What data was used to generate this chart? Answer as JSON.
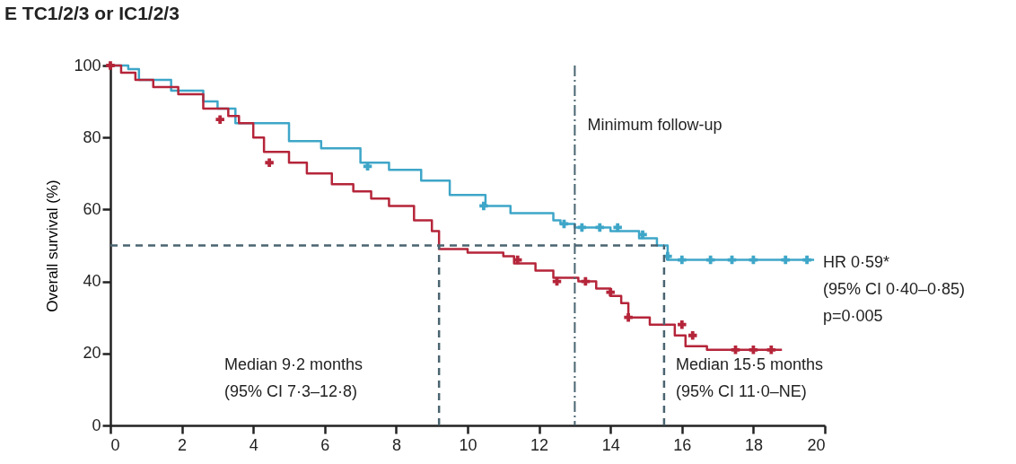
{
  "chart_data": {
    "type": "step",
    "title": "E  TC1/2/3 or IC1/2/3",
    "ylabel": "Overall survival (%)",
    "xlim": [
      0,
      20
    ],
    "ylim": [
      0,
      100
    ],
    "xticks": [
      0,
      2,
      4,
      6,
      8,
      10,
      12,
      14,
      16,
      18,
      20
    ],
    "yticks": [
      0,
      20,
      40,
      60,
      80,
      100
    ],
    "grid": false,
    "series": [
      {
        "color": "#3ea6c8",
        "x": [
          0,
          0.5,
          0.8,
          1.7,
          2.6,
          3.0,
          3.5,
          5.0,
          5.9,
          7.0,
          7.8,
          8.7,
          9.5,
          10.5,
          11.2,
          12.4,
          12.6,
          13.0,
          14.0,
          14.8,
          15.3,
          15.6,
          19.7
        ],
        "values": [
          100,
          99,
          96,
          93,
          90,
          88,
          84,
          79,
          77,
          73,
          71,
          68,
          64,
          61,
          59,
          57,
          56,
          55,
          54,
          52,
          50,
          46,
          46
        ]
      },
      {
        "color": "#b5253a",
        "x": [
          0,
          0.3,
          0.7,
          1.2,
          1.9,
          2.6,
          3.3,
          3.6,
          4.0,
          4.3,
          5.0,
          5.5,
          6.2,
          6.8,
          7.3,
          7.8,
          8.5,
          9.0,
          9.2,
          10.0,
          11.0,
          11.3,
          11.9,
          12.4,
          13.1,
          13.6,
          14.0,
          14.3,
          14.5,
          15.1,
          15.8,
          16.1,
          16.7,
          18.8
        ],
        "values": [
          100,
          98,
          96,
          94,
          92,
          88,
          86,
          84,
          80,
          76,
          73,
          70,
          67,
          65,
          63,
          61,
          57,
          54,
          49,
          48,
          47,
          45,
          43,
          41,
          40,
          38,
          36,
          34,
          30,
          28,
          25,
          22,
          21,
          21
        ]
      },
      {
        "type": "scatter",
        "marker": "cross",
        "color": "#3ea6c8",
        "x": [
          7.2,
          10.45,
          12.7,
          13.2,
          13.7,
          14.2,
          14.9,
          15.6,
          16.0,
          16.8,
          17.4,
          18.0,
          18.9,
          19.5
        ],
        "values": [
          72,
          61,
          56,
          55,
          55,
          55,
          53,
          47,
          46,
          46,
          46,
          46,
          46,
          46
        ]
      },
      {
        "type": "scatter",
        "marker": "cross",
        "color": "#b5253a",
        "x": [
          0,
          3.07,
          4.45,
          11.4,
          12.5,
          13.3,
          14.0,
          14.5,
          16.0,
          16.3,
          17.5,
          18.0,
          18.5
        ],
        "values": [
          100,
          85,
          73,
          46,
          40,
          40,
          37,
          30,
          28,
          25,
          21,
          21,
          21
        ]
      },
      {
        "type": "line",
        "line_style": "dashed",
        "color": "#4a6470",
        "x": [
          0,
          15.5
        ],
        "values": [
          50,
          50
        ]
      },
      {
        "type": "line",
        "line_style": "dashed",
        "color": "#4a6470",
        "x": [
          9.2,
          9.2
        ],
        "values": [
          0,
          50
        ]
      },
      {
        "type": "line",
        "line_style": "dashed",
        "color": "#4a6470",
        "x": [
          15.5,
          15.5
        ],
        "values": [
          0,
          50
        ]
      }
    ],
    "ref_lines": [
      {
        "axis": "x",
        "value": 13,
        "label": "Minimum follow-up",
        "color": "#4a6470",
        "line_style": "dashdot"
      }
    ],
    "annotations": [
      "Median 9·2 months\n(95% CI 7·3–12·8)",
      "Median 15·5 months\n(95% CI 11·0–NE)",
      "HR 0·59*\n(95% CI 0·40–0·85)\np=0·005"
    ]
  }
}
